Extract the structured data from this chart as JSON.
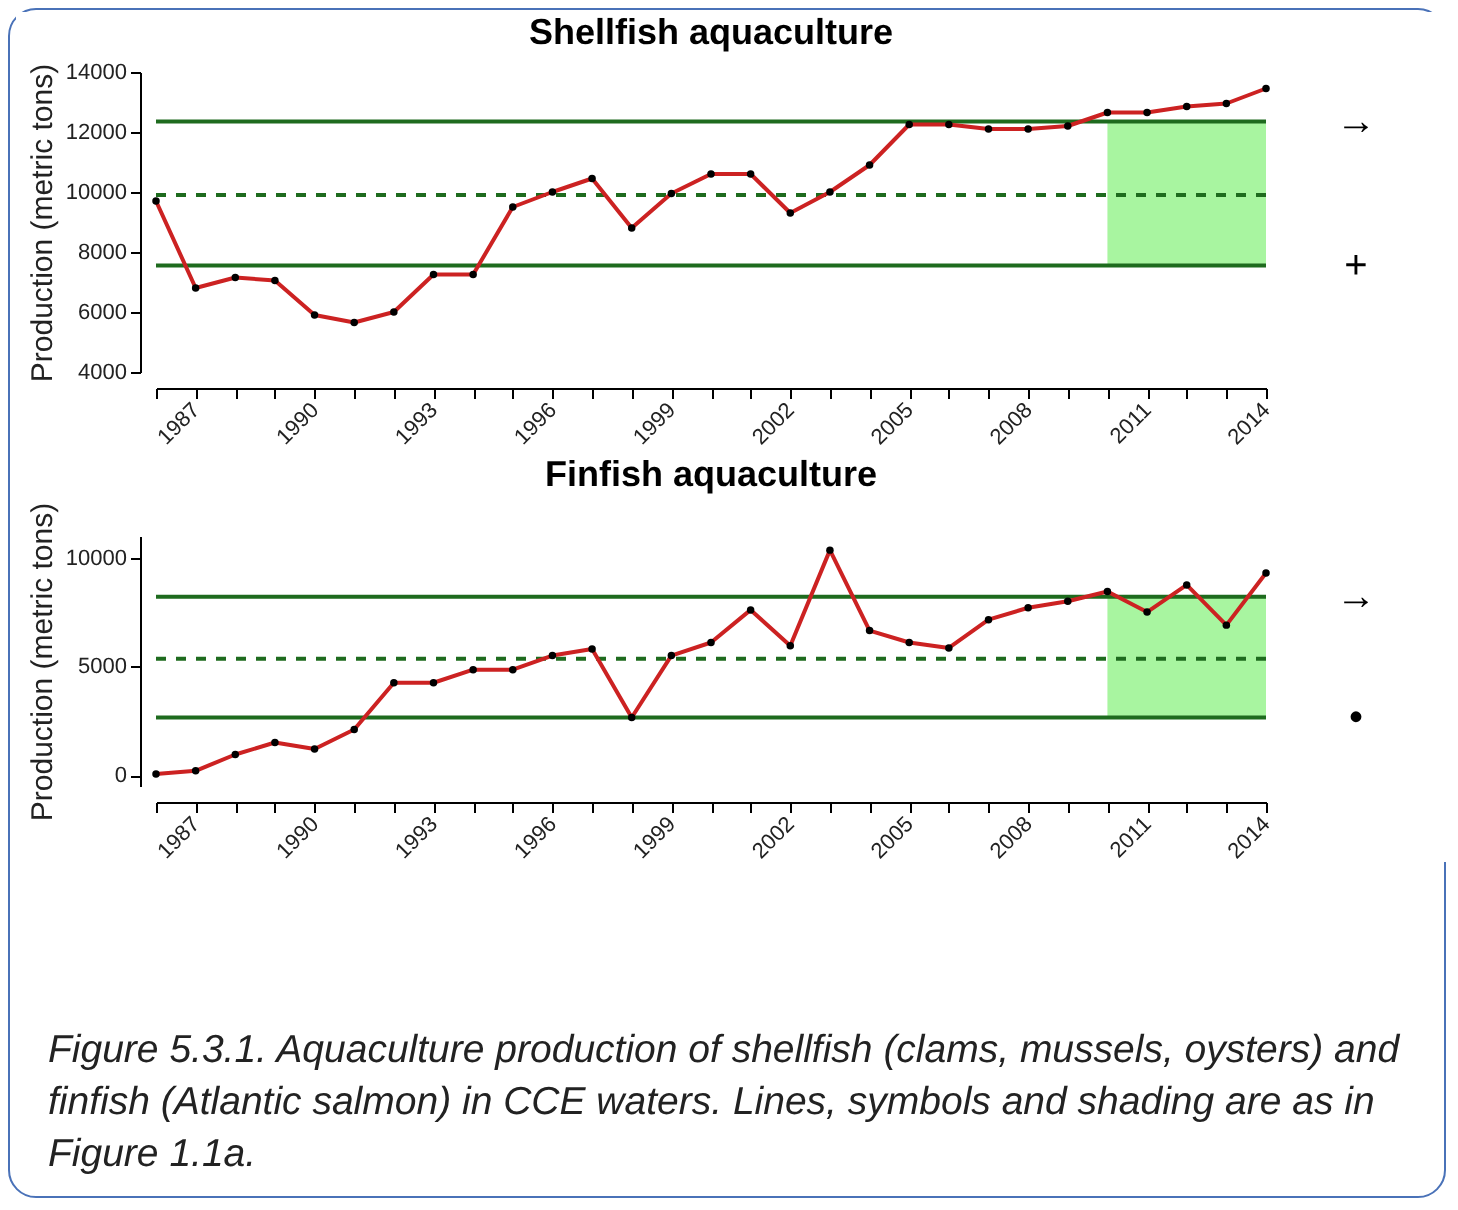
{
  "chart_data": [
    {
      "type": "line",
      "title": "Shellfish aquaculture",
      "ylabel": "Production (metric tons)",
      "x": [
        1986,
        1987,
        1988,
        1989,
        1990,
        1991,
        1992,
        1993,
        1994,
        1995,
        1996,
        1997,
        1998,
        1999,
        2000,
        2001,
        2002,
        2003,
        2004,
        2005,
        2006,
        2007,
        2008,
        2009,
        2010,
        2011,
        2012,
        2013,
        2014
      ],
      "series": [
        {
          "color": "#cc2222",
          "values": [
            9700,
            6800,
            7150,
            7050,
            5900,
            5650,
            6000,
            7250,
            7250,
            9500,
            10000,
            10450,
            8800,
            9950,
            10600,
            10600,
            9300,
            10000,
            10900,
            12250,
            12250,
            12100,
            12100,
            12200,
            12650,
            12650,
            12850,
            12950,
            13450
          ]
        }
      ],
      "xlim": [
        1986,
        2014
      ],
      "xticks": [
        {
          "value": 1986,
          "label": null
        },
        1987,
        {
          "value": 1988,
          "label": null
        },
        {
          "value": 1989,
          "label": null
        },
        1990,
        {
          "value": 1991,
          "label": null
        },
        {
          "value": 1992,
          "label": null
        },
        1993,
        {
          "value": 1994,
          "label": null
        },
        {
          "value": 1995,
          "label": null
        },
        1996,
        {
          "value": 1997,
          "label": null
        },
        {
          "value": 1998,
          "label": null
        },
        1999,
        {
          "value": 2000,
          "label": null
        },
        {
          "value": 2001,
          "label": null
        },
        2002,
        {
          "value": 2003,
          "label": null
        },
        {
          "value": 2004,
          "label": null
        },
        2005,
        {
          "value": 2006,
          "label": null
        },
        {
          "value": 2007,
          "label": null
        },
        2008,
        {
          "value": 2009,
          "label": null
        },
        {
          "value": 2010,
          "label": null
        },
        2011,
        {
          "value": 2012,
          "label": null
        },
        {
          "value": 2013,
          "label": null
        },
        2014
      ],
      "ylim": [
        4000,
        14000
      ],
      "yticks": [
        4000,
        6000,
        8000,
        10000,
        12000,
        14000
      ],
      "ref_lines": [
        {
          "axis": "y",
          "value": 12350,
          "color": "#1e6b1e",
          "line_style": "solid"
        },
        {
          "axis": "y",
          "value": 9900,
          "color": "#1e6b1e",
          "line_style": "dashed"
        },
        {
          "axis": "y",
          "value": 7550,
          "color": "#1e6b1e",
          "line_style": "solid"
        }
      ],
      "bands": [
        {
          "axis": "x",
          "from": 2010,
          "to": 2014,
          "color": "#a8f5a0"
        }
      ],
      "marker": "circle",
      "line_style": "solid",
      "grid": false,
      "annotations": [
        "→",
        "+"
      ]
    },
    {
      "type": "line",
      "title": "Finfish aquaculture",
      "ylabel": "Production (metric tons)",
      "x": [
        1986,
        1987,
        1988,
        1989,
        1990,
        1991,
        1992,
        1993,
        1994,
        1995,
        1996,
        1997,
        1998,
        1999,
        2000,
        2001,
        2002,
        2003,
        2004,
        2005,
        2006,
        2007,
        2008,
        2009,
        2010,
        2011,
        2012,
        2013,
        2014
      ],
      "series": [
        {
          "color": "#cc2222",
          "values": [
            50,
            200,
            950,
            1500,
            1200,
            2100,
            4250,
            4250,
            4850,
            4850,
            5500,
            5800,
            2650,
            5500,
            6100,
            7600,
            5950,
            10350,
            6650,
            6100,
            5850,
            7150,
            7700,
            8000,
            8450,
            7500,
            8750,
            6900,
            9300
          ]
        }
      ],
      "xlim": [
        1986,
        2014
      ],
      "xticks": [
        {
          "value": 1986,
          "label": null
        },
        1987,
        {
          "value": 1988,
          "label": null
        },
        {
          "value": 1989,
          "label": null
        },
        1990,
        {
          "value": 1991,
          "label": null
        },
        {
          "value": 1992,
          "label": null
        },
        1993,
        {
          "value": 1994,
          "label": null
        },
        {
          "value": 1995,
          "label": null
        },
        1996,
        {
          "value": 1997,
          "label": null
        },
        {
          "value": 1998,
          "label": null
        },
        1999,
        {
          "value": 2000,
          "label": null
        },
        {
          "value": 2001,
          "label": null
        },
        2002,
        {
          "value": 2003,
          "label": null
        },
        {
          "value": 2004,
          "label": null
        },
        2005,
        {
          "value": 2006,
          "label": null
        },
        {
          "value": 2007,
          "label": null
        },
        2008,
        {
          "value": 2009,
          "label": null
        },
        {
          "value": 2010,
          "label": null
        },
        2011,
        {
          "value": 2012,
          "label": null
        },
        {
          "value": 2013,
          "label": null
        },
        2014
      ],
      "ylim": [
        -500,
        11000
      ],
      "yticks": [
        0,
        5000,
        10000
      ],
      "ref_lines": [
        {
          "axis": "y",
          "value": 8200,
          "color": "#1e6b1e",
          "line_style": "solid"
        },
        {
          "axis": "y",
          "value": 5350,
          "color": "#1e6b1e",
          "line_style": "dashed"
        },
        {
          "axis": "y",
          "value": 2650,
          "color": "#1e6b1e",
          "line_style": "solid"
        }
      ],
      "bands": [
        {
          "axis": "x",
          "from": 2010,
          "to": 2014,
          "color": "#a8f5a0"
        }
      ],
      "marker": "circle",
      "line_style": "solid",
      "grid": false,
      "annotations": [
        "→",
        "•",
        "Figure 5.3.1. Aquaculture production of shellfish (clams, mussels, oysters) and finfish (Atlantic salmon) in CCE waters. Lines, symbols and shading are as in Figure 1.1a."
      ]
    }
  ]
}
